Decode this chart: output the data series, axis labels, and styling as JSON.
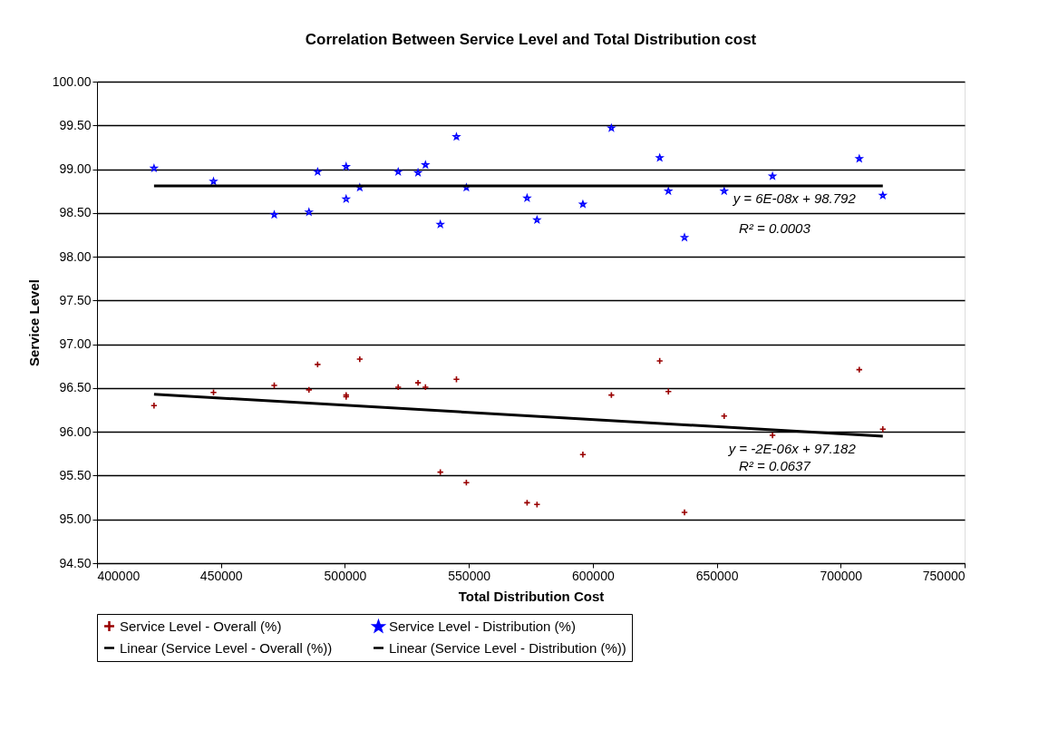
{
  "chart_data": {
    "type": "scatter",
    "title": "Correlation Between Service Level and Total Distribution cost",
    "xlabel": "Total Distribution Cost",
    "ylabel": "Service Level",
    "xlim": [
      400000,
      750000
    ],
    "xticks": [
      400000,
      450000,
      500000,
      550000,
      600000,
      650000,
      700000,
      750000
    ],
    "ylim": [
      94.5,
      100
    ],
    "yticks": [
      {
        "value": 94.5,
        "label": "94.50"
      },
      {
        "value": 95,
        "label": "95.00"
      },
      {
        "value": 95.5,
        "label": "95.50"
      },
      {
        "value": 96,
        "label": "96.00"
      },
      {
        "value": 96.5,
        "label": "96.50"
      },
      {
        "value": 97,
        "label": "97.00"
      },
      {
        "value": 97.5,
        "label": "97.50"
      },
      {
        "value": 98,
        "label": "98.00"
      },
      {
        "value": 98.5,
        "label": "98.50"
      },
      {
        "value": 99,
        "label": "99.00"
      },
      {
        "value": 99.5,
        "label": "99.50"
      },
      {
        "value": 100,
        "label": "100.00"
      }
    ],
    "grid": "y",
    "legend": "bottom",
    "series": [
      {
        "name": "Service Level - Overall (%)",
        "type": "scatter",
        "marker": "cross",
        "color": "#990000",
        "x": [
          423000,
          447000,
          471500,
          489000,
          485500,
          500500,
          500500,
          506000,
          521500,
          529500,
          532500,
          545000,
          538500,
          549000,
          573500,
          577500,
          596000,
          607500,
          627000,
          630500,
          637000,
          653000,
          672500,
          707500,
          717000
        ],
        "values": [
          96.3,
          96.45,
          96.53,
          96.77,
          96.48,
          96.42,
          96.4,
          96.83,
          96.51,
          96.56,
          96.51,
          96.6,
          95.54,
          95.42,
          95.19,
          95.17,
          95.74,
          96.42,
          96.81,
          96.46,
          95.08,
          96.18,
          95.96,
          96.71,
          96.03
        ]
      },
      {
        "name": "Service Level - Distribution (%)",
        "type": "scatter",
        "marker": "star",
        "color": "#0000ff",
        "x": [
          423000,
          447000,
          471500,
          489000,
          485500,
          500500,
          500500,
          506000,
          521500,
          529500,
          532500,
          545000,
          538500,
          549000,
          573500,
          577500,
          596000,
          607500,
          627000,
          630500,
          637000,
          653000,
          672500,
          707500,
          717000
        ],
        "values": [
          99.01,
          98.86,
          98.48,
          98.97,
          98.51,
          99.03,
          98.66,
          98.79,
          98.97,
          98.96,
          99.05,
          99.37,
          98.37,
          98.79,
          98.67,
          98.42,
          98.6,
          99.47,
          99.13,
          98.75,
          98.22,
          98.75,
          98.92,
          99.12,
          98.7
        ]
      },
      {
        "name": "Linear (Service Level - Overall (%))",
        "type": "line",
        "line_style": "solid",
        "color": "#000000",
        "x": [
          423000,
          717000
        ],
        "values": [
          96.43,
          95.95
        ]
      },
      {
        "name": "Linear (Service Level - Distribution (%))",
        "type": "line",
        "line_style": "solid",
        "color": "#000000",
        "x": [
          423000,
          717000
        ],
        "values": [
          98.81,
          98.81
        ]
      }
    ],
    "annotations": [
      "y = 6E-08x + 98.792",
      "R² = 0.0003",
      "y = -2E-06x + 97.182",
      "R² = 0.0637"
    ]
  }
}
